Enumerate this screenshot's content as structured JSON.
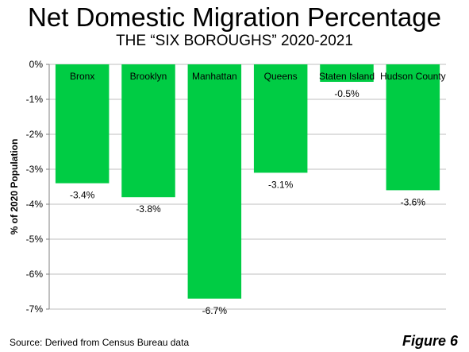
{
  "chart_data": {
    "type": "bar",
    "title": "Net Domestic Migration Percentage",
    "subtitle": "THE “SIX BOROUGHS” 2020-2021",
    "ylabel": "% of 2020 Population",
    "categories": [
      "Bronx",
      "Brooklyn",
      "Manhattan",
      "Queens",
      "Staten Island",
      "Hudson County"
    ],
    "values": [
      -3.4,
      -3.8,
      -6.7,
      -3.1,
      -0.5,
      -3.6
    ],
    "data_labels": [
      "-3.4%",
      "-3.8%",
      "-6.7%",
      "-3.1%",
      "-0.5%",
      "-3.6%"
    ],
    "y_ticks": [
      0,
      -1,
      -2,
      -3,
      -4,
      -5,
      -6,
      -7
    ],
    "y_tick_labels": [
      "0%",
      "-1%",
      "-2%",
      "-3%",
      "-4%",
      "-5%",
      "-6%",
      "-7%"
    ],
    "ylim": [
      -7,
      0
    ],
    "grid": true,
    "bar_color": "#00cc44",
    "grid_color": "#bfbfbf"
  },
  "footer": {
    "source": "Source: Derived from Census Bureau data",
    "figure": "Figure 6"
  }
}
